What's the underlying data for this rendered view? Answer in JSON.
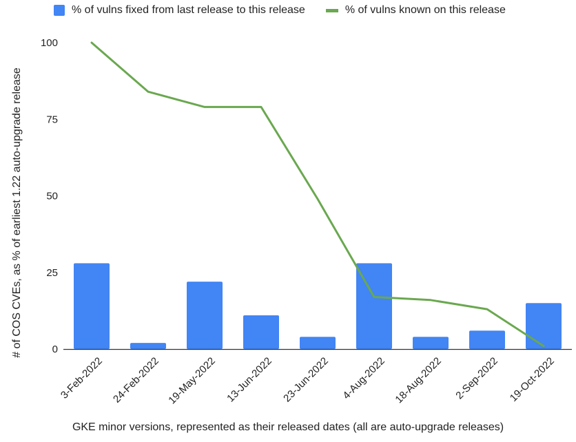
{
  "chart_data": {
    "type": "bar",
    "categories": [
      "3-Feb-2022",
      "24-Feb-2022",
      "19-May-2022",
      "13-Jun-2022",
      "23-Jun-2022",
      "4-Aug-2022",
      "18-Aug-2022",
      "2-Sep-2022",
      "19-Oct-2022"
    ],
    "series": [
      {
        "name": "% of vulns fixed from last release to this release",
        "type": "bar",
        "color": "#4285f4",
        "values": [
          28,
          2,
          22,
          11,
          4,
          28,
          4,
          6,
          15
        ]
      },
      {
        "name": "% of vulns known on this release",
        "type": "line",
        "color": "#6aa84f",
        "values": [
          100,
          84,
          79,
          79,
          49,
          17,
          16,
          13,
          1
        ]
      }
    ],
    "title": "",
    "xlabel": "GKE minor versions, represented as their released dates (all are auto-upgrade releases)",
    "ylabel": "# of COS CVEs, as % of earliest 1.22 auto-upgrade release",
    "ylim": [
      0,
      100
    ],
    "yticks": [
      0,
      25,
      50,
      75,
      100
    ],
    "grid": false,
    "legend_position": "top"
  }
}
